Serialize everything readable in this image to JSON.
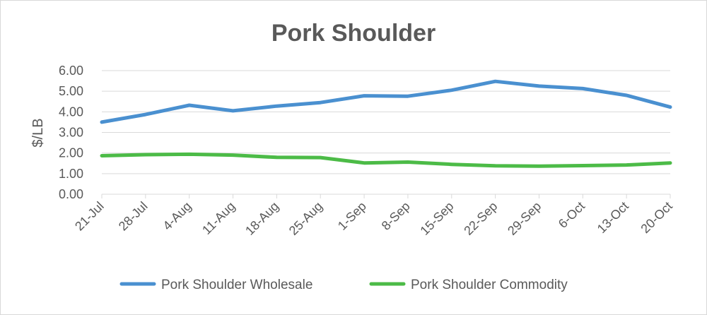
{
  "chart_data": {
    "type": "line",
    "title": "Pork Shoulder",
    "ylabel": "$/LB",
    "xlabel": "",
    "ylim": [
      0,
      6
    ],
    "yticks": [
      "0.00",
      "1.00",
      "2.00",
      "3.00",
      "4.00",
      "5.00",
      "6.00"
    ],
    "grid": true,
    "legend_position": "bottom",
    "categories": [
      "21-Jul",
      "28-Jul",
      "4-Aug",
      "11-Aug",
      "18-Aug",
      "25-Aug",
      "1-Sep",
      "8-Sep",
      "15-Sep",
      "22-Sep",
      "29-Sep",
      "6-Oct",
      "13-Oct",
      "20-Oct"
    ],
    "series": [
      {
        "name": "Pork Shoulder Wholesale",
        "color": "#4a90d0",
        "values": [
          3.5,
          3.87,
          4.32,
          4.05,
          4.28,
          4.45,
          4.78,
          4.76,
          5.05,
          5.48,
          5.25,
          5.13,
          4.8,
          4.23
        ]
      },
      {
        "name": "Pork Shoulder Commodity",
        "color": "#4cbb47",
        "values": [
          1.87,
          1.92,
          1.94,
          1.9,
          1.79,
          1.78,
          1.52,
          1.56,
          1.45,
          1.38,
          1.36,
          1.39,
          1.42,
          1.52
        ]
      }
    ]
  }
}
